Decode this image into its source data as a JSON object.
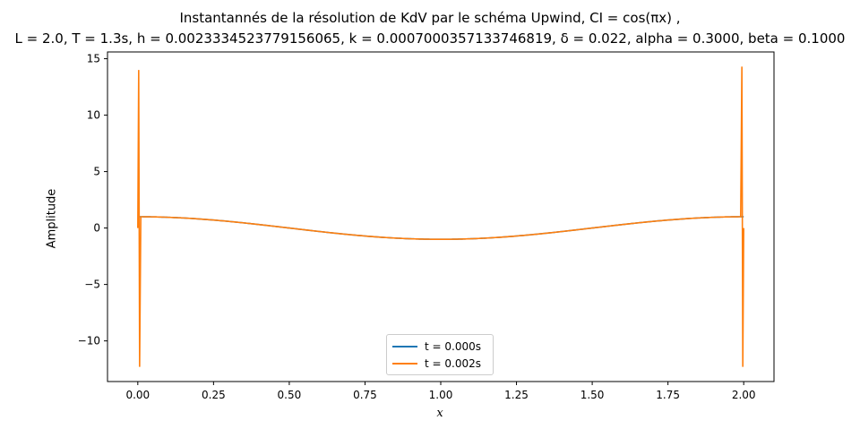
{
  "chart_data": {
    "type": "line",
    "title_line1": "Instantannés de la résolution de KdV par le schéma Upwind, CI = cos(πx) ,",
    "title_line2": "L = 2.0, T = 1.3s, h = 0.0023334523779156065, k = 0.0007000357133746819, δ = 0.022,  alpha = 0.3000, beta = 0.1000",
    "xlabel": "x",
    "ylabel": "Amplitude",
    "xlim": [
      -0.1,
      2.1
    ],
    "ylim": [
      -13.6,
      15.6
    ],
    "xticks": [
      "0.00",
      "0.25",
      "0.50",
      "0.75",
      "1.00",
      "1.25",
      "1.50",
      "1.75",
      "2.00"
    ],
    "yticks": [
      "−10",
      "−5",
      "0",
      "5",
      "10",
      "15"
    ],
    "xtick_values": [
      0,
      0.25,
      0.5,
      0.75,
      1.0,
      1.25,
      1.5,
      1.75,
      2.0
    ],
    "ytick_values": [
      -10,
      -5,
      0,
      5,
      10,
      15
    ],
    "grid": false,
    "legend_position": "lower center",
    "series": [
      {
        "name": "t = 0.000s",
        "color": "#1f77b4",
        "function": "cos(pi*x)",
        "x_range": [
          0,
          2
        ]
      },
      {
        "name": "t = 0.002s",
        "color": "#ff7f0e",
        "function": "cos(pi*x)",
        "x_range": [
          0,
          2
        ],
        "spikes": [
          {
            "x": 0.0,
            "y": 0.0
          },
          {
            "x": 0.003,
            "y": 14.0
          },
          {
            "x": 0.006,
            "y": -12.3
          },
          {
            "x": 0.01,
            "y": 1.0
          },
          {
            "x": 1.99,
            "y": 1.0
          },
          {
            "x": 1.994,
            "y": 14.3
          },
          {
            "x": 1.997,
            "y": -12.3
          },
          {
            "x": 2.0,
            "y": 0.0
          }
        ]
      }
    ]
  }
}
